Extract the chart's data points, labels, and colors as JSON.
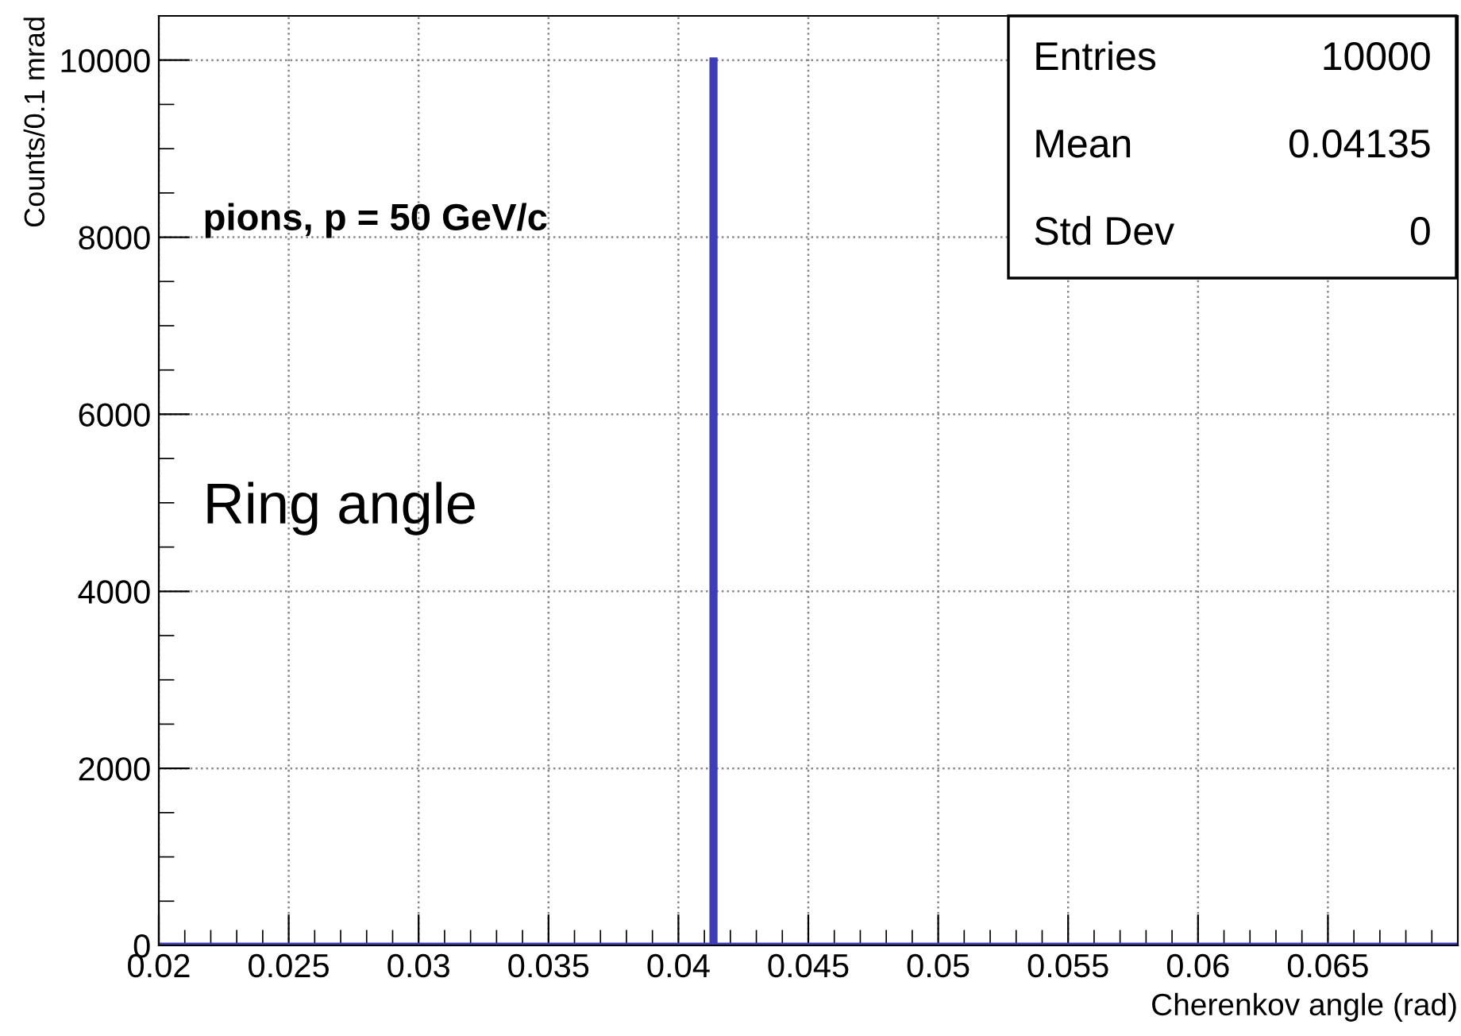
{
  "chart_data": {
    "type": "histogram",
    "xlabel": "Cherenkov angle (rad)",
    "ylabel": "Counts/0.1 mrad",
    "bins": [
      0.02,
      0.0413,
      0.0414,
      0.07
    ],
    "values": [
      0,
      10000,
      0
    ],
    "color": "#3d3db8",
    "xlim": [
      0.02,
      0.07
    ],
    "ylim": [
      0,
      10500
    ],
    "xticks": [
      0.02,
      0.025,
      0.03,
      0.035,
      0.04,
      0.045,
      0.05,
      0.055,
      0.06,
      0.065
    ],
    "yticks": [
      0,
      2000,
      4000,
      6000,
      8000,
      10000
    ],
    "grid": true,
    "annotations": [
      "pions, p = 50 GeV/c",
      "Ring angle",
      "Entries",
      "10000",
      "Mean",
      "0.04135",
      "Std Dev",
      "0"
    ]
  }
}
